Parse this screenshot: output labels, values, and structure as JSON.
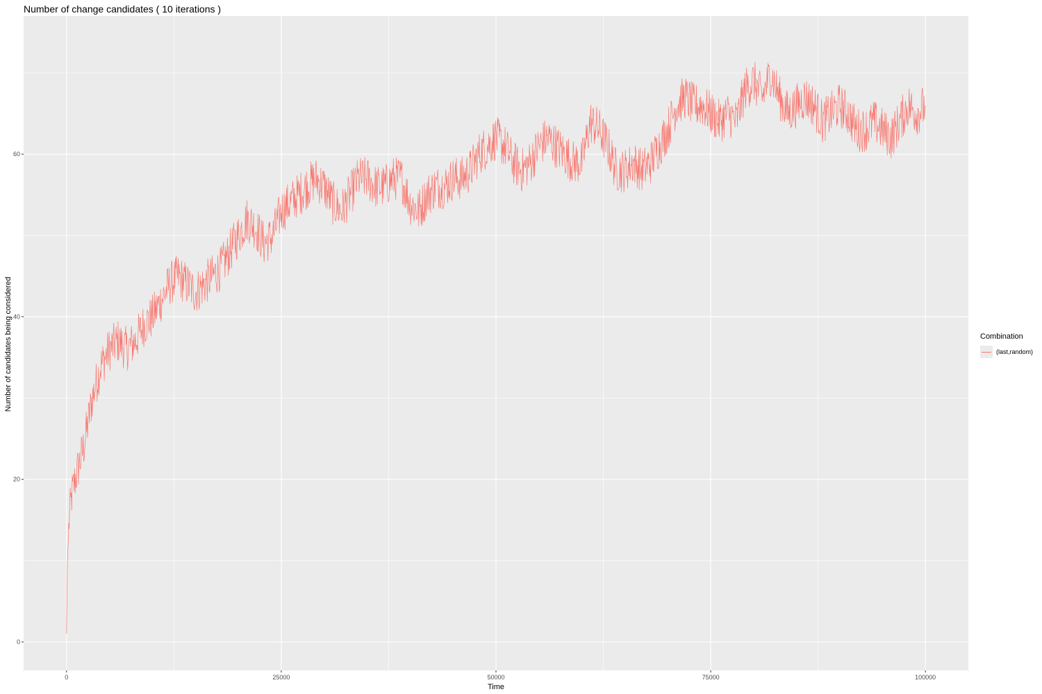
{
  "chart_data": {
    "type": "line",
    "title": "Number of change candidates ( 10 iterations )",
    "xlabel": "Time",
    "ylabel": "Number of candidates being considered",
    "xlim": [
      -5000,
      105000
    ],
    "ylim": [
      -3.5,
      77
    ],
    "x_ticks": [
      0,
      25000,
      50000,
      75000,
      100000
    ],
    "x_tick_labels": [
      "0",
      "25000",
      "50000",
      "75000",
      "100000"
    ],
    "y_ticks": [
      0,
      20,
      40,
      60
    ],
    "y_tick_labels": [
      "0",
      "20",
      "40",
      "60"
    ],
    "grid": true,
    "background": "#ebebeb",
    "legend": {
      "title": "Combination",
      "position": "right",
      "entries": [
        "(last,random)"
      ]
    },
    "series": [
      {
        "name": "(last,random)",
        "color": "#f8766d",
        "x": [
          0,
          100,
          300,
          600,
          1000,
          1500,
          2000,
          2500,
          3000,
          3500,
          4000,
          5000,
          6000,
          7000,
          8000,
          9000,
          10000,
          11000,
          12000,
          13000,
          14000,
          15000,
          16000,
          17000,
          18000,
          19000,
          20000,
          21000,
          22000,
          23000,
          24000,
          25000,
          26000,
          27000,
          28000,
          29000,
          30000,
          31000,
          32000,
          33000,
          34000,
          35000,
          36000,
          37000,
          38000,
          39000,
          40000,
          41000,
          42000,
          43000,
          44000,
          45000,
          46000,
          47000,
          48000,
          49000,
          50000,
          51000,
          52000,
          53000,
          54000,
          55000,
          56000,
          57000,
          58000,
          59000,
          60000,
          61000,
          62000,
          63000,
          64000,
          65000,
          66000,
          67000,
          68000,
          69000,
          70000,
          71000,
          72000,
          73000,
          74000,
          75000,
          76000,
          77000,
          78000,
          79000,
          80000,
          81000,
          82000,
          83000,
          84000,
          85000,
          86000,
          87000,
          88000,
          89000,
          90000,
          91000,
          92000,
          93000,
          94000,
          95000,
          96000,
          97000,
          98000,
          99000,
          100000
        ],
        "y": [
          1,
          10,
          15,
          18,
          20,
          22,
          24,
          27,
          30,
          32,
          34,
          36,
          37,
          36,
          37,
          39,
          40,
          42,
          44,
          45,
          44,
          43,
          44,
          45,
          46,
          48,
          50,
          52,
          51,
          49,
          50,
          53,
          54,
          55,
          56,
          57,
          56,
          54,
          53,
          55,
          57,
          57,
          56,
          56,
          57,
          57,
          54,
          53,
          55,
          56,
          56,
          57,
          57,
          58,
          60,
          61,
          62,
          61,
          59,
          58,
          59,
          61,
          62,
          61,
          60,
          59,
          59,
          64,
          63,
          61,
          58,
          58,
          59,
          58,
          59,
          61,
          63,
          66,
          67,
          66,
          66,
          65,
          64,
          65,
          64,
          68,
          69,
          67,
          70,
          67,
          65,
          66,
          67,
          66,
          64,
          65,
          66,
          65,
          63,
          63,
          64,
          63,
          62,
          64,
          66,
          65,
          66
        ]
      }
    ]
  }
}
